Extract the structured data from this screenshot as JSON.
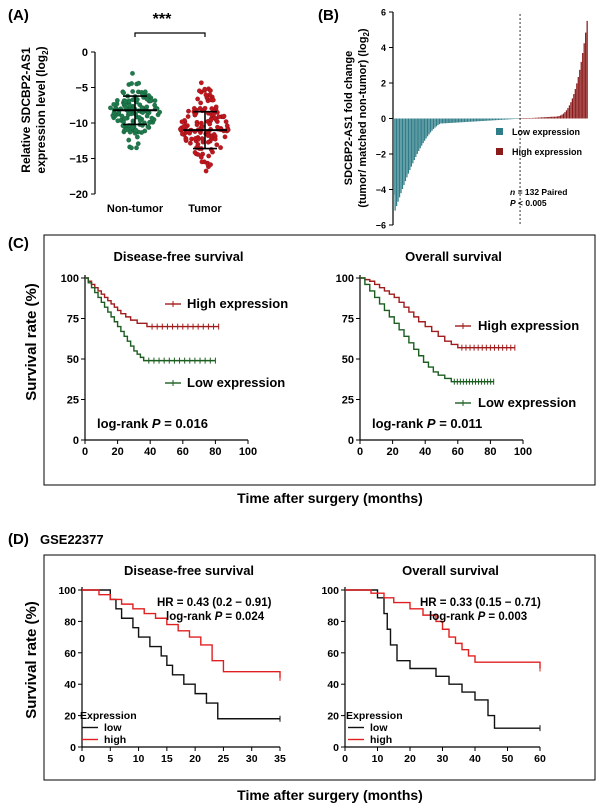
{
  "panelA": {
    "label": "(A)",
    "ylabel_line1": "Relative SDCBP2-AS1",
    "ylabel_line2": "expression level (log",
    "ylabel_sub": "2",
    "ylabel_close": ")",
    "significance": "***",
    "colors": {
      "nontumor": "#1e7a4c",
      "tumor": "#c0161e"
    },
    "chart_data": {
      "type": "scatter",
      "categories": [
        "Non-tumor",
        "Tumor"
      ],
      "yticks": [
        0,
        -5,
        -10,
        -15,
        -20
      ],
      "ylim": [
        -20,
        0
      ],
      "groups": [
        {
          "name": "Non-tumor",
          "mean": -8.2,
          "sd": 2.0,
          "min": -13.5,
          "max": -2.5
        },
        {
          "name": "Tumor",
          "mean": -11.0,
          "sd": 2.6,
          "min": -19.0,
          "max": -3.2
        }
      ]
    }
  },
  "panelB": {
    "label": "(B)",
    "ylabel_line1": "SDCBP2-AS1 fold change",
    "ylabel_line2": "(tumor/ matched  non-tumor) (log",
    "ylabel_sub": "2",
    "ylabel_close": ")",
    "legend": [
      {
        "label": "Low expression",
        "color": "#2f7d88"
      },
      {
        "label": "High expression",
        "color": "#8b1a1a"
      }
    ],
    "note_n": "n",
    "note_line1": " = 132 Paired",
    "note_p": "P",
    "note_line2": " < 0.005",
    "chart_data": {
      "type": "bar",
      "n": 132,
      "yticks": [
        6,
        4,
        2,
        0,
        -2,
        -4,
        -6
      ],
      "ylim": [
        -6,
        6
      ],
      "min_value": -4.3,
      "max_value": 5.5,
      "cutoff_index": 86
    }
  },
  "panelC": {
    "label": "(C)",
    "ylabel": "Survival rate (%)",
    "xlabel": "Time after surgery (months)",
    "colors": {
      "high": "#a01c1c",
      "low": "#1b5e20"
    },
    "chart_data": [
      {
        "type": "line",
        "title": "Disease-free survival",
        "xticks": [
          0,
          20,
          40,
          60,
          80,
          100
        ],
        "yticks": [
          0,
          25,
          50,
          75,
          100
        ],
        "xlim": [
          0,
          100
        ],
        "ylim": [
          0,
          100
        ],
        "stat_prefix": "log-rank ",
        "stat_p": "P",
        "stat_value": " = 0.016",
        "series": [
          {
            "name": "High expression",
            "x": [
              0,
              2,
              4,
              6,
              8,
              10,
              12,
              14,
              16,
              18,
              20,
              22,
              25,
              28,
              32,
              38,
              82
            ],
            "y": [
              100,
              98,
              96,
              94,
              92,
              90,
              88,
              86,
              84,
              82,
              80,
              78,
              76,
              74,
              72,
              70,
              70
            ]
          },
          {
            "name": "Low expression",
            "x": [
              0,
              2,
              4,
              6,
              8,
              10,
              12,
              14,
              16,
              18,
              20,
              22,
              24,
              26,
              28,
              30,
              32,
              34,
              36,
              80
            ],
            "y": [
              100,
              97,
              94,
              91,
              88,
              85,
              82,
              79,
              76,
              73,
              70,
              67,
              64,
              61,
              58,
              55,
              53,
              51,
              49,
              49
            ]
          }
        ]
      },
      {
        "type": "line",
        "title": "Overall survival",
        "xticks": [
          0,
          20,
          40,
          60,
          80,
          100
        ],
        "yticks": [
          0,
          25,
          50,
          75,
          100
        ],
        "xlim": [
          0,
          100
        ],
        "ylim": [
          0,
          100
        ],
        "stat_prefix": "log-rank ",
        "stat_p": "P",
        "stat_value": " = 0.011",
        "series": [
          {
            "name": "High expression",
            "x": [
              0,
              3,
              6,
              9,
              12,
              15,
              18,
              21,
              24,
              27,
              30,
              33,
              36,
              40,
              44,
              48,
              52,
              56,
              60,
              95
            ],
            "y": [
              100,
              99,
              98,
              96,
              94,
              92,
              90,
              88,
              85,
              82,
              79,
              76,
              73,
              70,
              67,
              64,
              61,
              59,
              57,
              57
            ]
          },
          {
            "name": "Low expression",
            "x": [
              0,
              3,
              6,
              9,
              12,
              15,
              18,
              21,
              24,
              27,
              30,
              33,
              36,
              39,
              42,
              45,
              48,
              52,
              56,
              82
            ],
            "y": [
              100,
              96,
              92,
              88,
              84,
              80,
              76,
              72,
              68,
              64,
              60,
              56,
              52,
              48,
              45,
              42,
              40,
              38,
              36,
              36
            ]
          }
        ]
      }
    ]
  },
  "panelD": {
    "label": "(D)",
    "dataset": "GSE22377",
    "ylabel": "Survival rate (%)",
    "xlabel": "Time after surgery (months)",
    "legend_title": "Expression",
    "colors": {
      "low": "#111111",
      "high": "#e02020"
    },
    "chart_data": [
      {
        "type": "line",
        "title": "Disease-free survival",
        "hr": "HR = 0.43 (0.2 − 0.91)",
        "stat_prefix": "log-rank ",
        "stat_p": "P",
        "stat_value": " = 0.024",
        "xticks": [
          0,
          5,
          10,
          15,
          20,
          25,
          30,
          35
        ],
        "yticks": [
          0,
          20,
          40,
          60,
          80,
          100
        ],
        "xlim": [
          0,
          35
        ],
        "ylim": [
          0,
          100
        ],
        "series": [
          {
            "name": "low",
            "x": [
              0,
              5,
              6,
              7,
              9,
              10,
              12,
              14,
              15,
              16,
              18,
              20,
              22,
              24,
              35
            ],
            "y": [
              100,
              94,
              88,
              82,
              76,
              70,
              64,
              58,
              52,
              46,
              40,
              34,
              28,
              18,
              18
            ]
          },
          {
            "name": "high",
            "x": [
              0,
              3,
              5,
              7,
              9,
              11,
              13,
              15,
              17,
              19,
              21,
              23,
              25,
              35
            ],
            "y": [
              100,
              97,
              94,
              91,
              88,
              85,
              82,
              78,
              74,
              70,
              65,
              55,
              48,
              44
            ]
          }
        ]
      },
      {
        "type": "line",
        "title": "Overall survival",
        "hr": "HR = 0.33 (0.15 − 0.71)",
        "stat_prefix": "log-rank ",
        "stat_p": "P",
        "stat_value": " = 0.003",
        "xticks": [
          0,
          10,
          20,
          30,
          40,
          50,
          60
        ],
        "yticks": [
          0,
          20,
          40,
          60,
          80,
          100
        ],
        "xlim": [
          0,
          60
        ],
        "ylim": [
          0,
          100
        ],
        "series": [
          {
            "name": "low",
            "x": [
              0,
              10,
              12,
              13,
              14,
              16,
              20,
              24,
              28,
              32,
              36,
              40,
              44,
              46,
              60
            ],
            "y": [
              100,
              95,
              85,
              75,
              65,
              55,
              50,
              50,
              45,
              40,
              35,
              30,
              20,
              12,
              12
            ]
          },
          {
            "name": "high",
            "x": [
              0,
              8,
              12,
              15,
              20,
              24,
              28,
              30,
              32,
              34,
              36,
              38,
              40,
              57,
              60
            ],
            "y": [
              100,
              98,
              95,
              92,
              88,
              84,
              80,
              75,
              70,
              66,
              62,
              58,
              54,
              54,
              50
            ]
          }
        ]
      }
    ]
  }
}
